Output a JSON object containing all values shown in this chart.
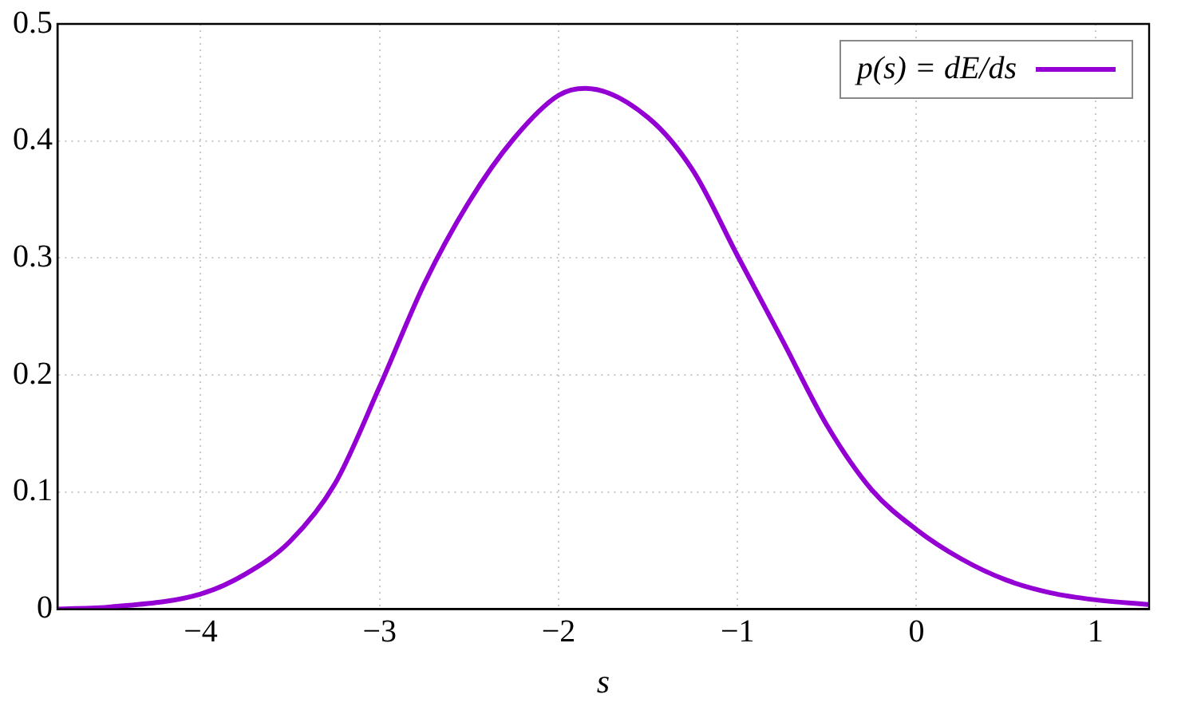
{
  "chart_data": {
    "type": "line",
    "xlabel": "s",
    "x": [
      -4.8,
      -4.5,
      -4.0,
      -3.75,
      -3.5,
      -3.25,
      -3.0,
      -2.75,
      -2.5,
      -2.25,
      -2.0,
      -1.85,
      -1.5,
      -1.25,
      -1.0,
      -0.75,
      -0.5,
      -0.25,
      0,
      0.25,
      0.5,
      0.75,
      1.0,
      1.3
    ],
    "series": [
      {
        "name": "p(s) = dE/ds",
        "color": "#9400d3",
        "values": [
          0.0,
          0.002,
          0.013,
          0.03,
          0.058,
          0.107,
          0.19,
          0.278,
          0.348,
          0.402,
          0.439,
          0.445,
          0.42,
          0.375,
          0.302,
          0.23,
          0.157,
          0.102,
          0.068,
          0.043,
          0.025,
          0.014,
          0.008,
          0.004
        ]
      }
    ],
    "xlim": [
      -4.8,
      1.3
    ],
    "xticks": [
      -4,
      -3,
      -2,
      -1,
      0,
      1
    ],
    "ylim": [
      0,
      0.5
    ],
    "yticks": [
      0,
      0.1,
      0.2,
      0.3,
      0.4,
      0.5
    ],
    "grid": true,
    "legend": "top right",
    "marker": "none",
    "line_style": "solid"
  }
}
